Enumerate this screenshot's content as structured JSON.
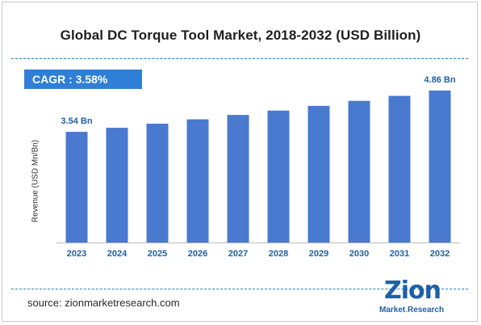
{
  "title": "Global DC Torque Tool Market, 2018-2032 (USD Billion)",
  "cagr_label": "CAGR : 3.58%",
  "source": "source: zionmarketresearch.com",
  "logo": {
    "word": "Zion",
    "sub_left": "Market",
    "sub_right": "Research"
  },
  "colors": {
    "bar": "#4a79d0",
    "accent": "#2f7fd6",
    "label": "#1f5fa8"
  },
  "chart_data": {
    "type": "bar",
    "categories": [
      "2023",
      "2024",
      "2025",
      "2026",
      "2027",
      "2028",
      "2029",
      "2030",
      "2031",
      "2032"
    ],
    "values": [
      3.54,
      3.67,
      3.8,
      3.94,
      4.08,
      4.22,
      4.37,
      4.53,
      4.69,
      4.86
    ],
    "data_labels": [
      {
        "index": 0,
        "text": "3.54 Bn"
      },
      {
        "index": 9,
        "text": "4.86 Bn"
      }
    ],
    "xlabel": "",
    "ylabel": "Revenue (USD Mn/Bn)",
    "ylim": [
      0,
      5
    ],
    "grid": false,
    "legend": "none"
  }
}
